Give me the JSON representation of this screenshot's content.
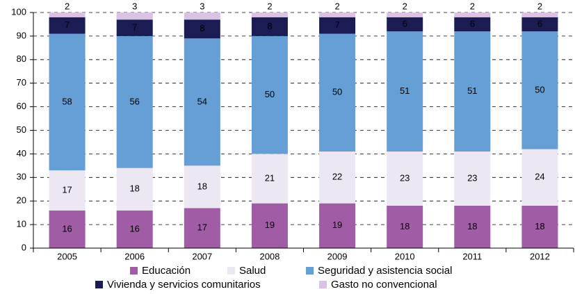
{
  "chart_data": {
    "type": "stacked_bar",
    "categories": [
      "2005",
      "2006",
      "2007",
      "2008",
      "2009",
      "2010",
      "2011",
      "2012"
    ],
    "series": [
      {
        "name": "Educación",
        "color": "#a05ca5",
        "values": [
          16,
          16,
          17,
          19,
          19,
          18,
          18,
          18
        ]
      },
      {
        "name": "Salud",
        "color": "#ede7f3",
        "values": [
          17,
          18,
          18,
          21,
          22,
          23,
          23,
          24
        ]
      },
      {
        "name": "Seguridad y asistencia social",
        "color": "#659fd6",
        "values": [
          58,
          56,
          54,
          50,
          50,
          51,
          51,
          50
        ]
      },
      {
        "name": "Vivienda y servicios comunitarios",
        "color": "#1c1c55",
        "values": [
          7,
          7,
          8,
          8,
          7,
          6,
          6,
          6
        ]
      },
      {
        "name": "Gasto no convencional",
        "color": "#d9c2e2",
        "values": [
          2,
          3,
          3,
          2,
          2,
          2,
          2,
          2
        ]
      }
    ],
    "ylim": [
      0,
      100
    ],
    "yticks": [
      0,
      10,
      20,
      30,
      40,
      50,
      60,
      70,
      80,
      90,
      100
    ],
    "grid": true,
    "legend": "bottom"
  }
}
